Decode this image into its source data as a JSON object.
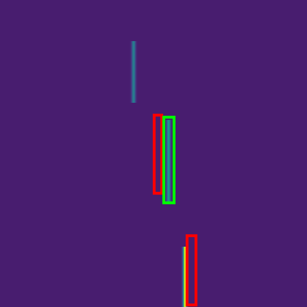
{
  "chart_data": {
    "type": "image",
    "xlim": [
      0,
      448
    ],
    "ylim": [
      448,
      0
    ],
    "tick_labels": false,
    "background": 0.08,
    "color_range": [
      0,
      1
    ],
    "signals": [
      {
        "x": 195,
        "y0": 60,
        "y1": 150,
        "intensity": 0.35
      },
      {
        "x": 246,
        "y0": 175,
        "y1": 295,
        "intensity": 0.45
      },
      {
        "x": 270,
        "y0": 360,
        "y1": 448,
        "intensity": 0.9
      }
    ],
    "boxes": [
      {
        "x0": 225,
        "y0": 168,
        "x1": 236,
        "y1": 282,
        "color": "#ff0000"
      },
      {
        "x0": 239,
        "y0": 171,
        "x1": 254,
        "y1": 296,
        "color": "#00ff00"
      },
      {
        "x0": 273,
        "y0": 344,
        "x1": 286,
        "y1": 445,
        "color": "#ff0000"
      }
    ]
  }
}
